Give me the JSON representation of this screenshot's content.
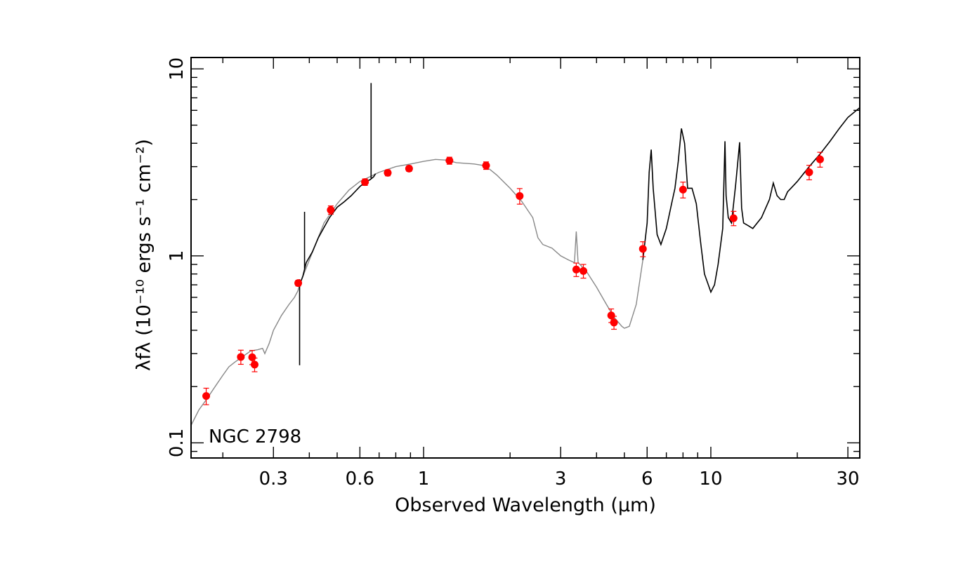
{
  "chart_data": {
    "type": "line",
    "xlabel": "Observed Wavelength (μm)",
    "ylabel": "λfλ (10⁻¹⁰ ergs s⁻¹ cm⁻²)",
    "annotation": "NGC 2798",
    "x_scale": "log",
    "y_scale": "log",
    "xlim": [
      0.155,
      33
    ],
    "ylim": [
      0.083,
      11.5
    ],
    "x_ticks": [
      {
        "value": 0.3,
        "label": "0.3"
      },
      {
        "value": 0.6,
        "label": "0.6"
      },
      {
        "value": 1,
        "label": "1"
      },
      {
        "value": 3,
        "label": "3"
      },
      {
        "value": 6,
        "label": "6"
      },
      {
        "value": 10,
        "label": "10"
      },
      {
        "value": 30,
        "label": "30"
      }
    ],
    "y_ticks": [
      {
        "value": 0.1,
        "label": "0.1"
      },
      {
        "value": 1,
        "label": "1"
      },
      {
        "value": 10,
        "label": "10"
      }
    ],
    "grid": false,
    "colors": {
      "points": "#ff0000",
      "observed_spectrum": "#000000",
      "model_spectrum": "#888888"
    },
    "photometry": [
      {
        "x": 0.175,
        "y": 0.178,
        "err": 0.018
      },
      {
        "x": 0.231,
        "y": 0.288,
        "err": 0.025
      },
      {
        "x": 0.253,
        "y": 0.287,
        "err": 0.025
      },
      {
        "x": 0.258,
        "y": 0.262,
        "err": 0.022
      },
      {
        "x": 0.366,
        "y": 0.715,
        "err": 0.025
      },
      {
        "x": 0.475,
        "y": 1.76,
        "err": 0.09
      },
      {
        "x": 0.625,
        "y": 2.48,
        "err": 0.1
      },
      {
        "x": 0.75,
        "y": 2.78,
        "err": 0.1
      },
      {
        "x": 0.89,
        "y": 2.93,
        "err": 0.1
      },
      {
        "x": 1.23,
        "y": 3.23,
        "err": 0.14
      },
      {
        "x": 1.65,
        "y": 3.04,
        "err": 0.14
      },
      {
        "x": 2.16,
        "y": 2.09,
        "err": 0.2
      },
      {
        "x": 3.4,
        "y": 0.845,
        "err": 0.07
      },
      {
        "x": 3.6,
        "y": 0.83,
        "err": 0.07
      },
      {
        "x": 4.5,
        "y": 0.48,
        "err": 0.04
      },
      {
        "x": 4.6,
        "y": 0.44,
        "err": 0.035
      },
      {
        "x": 5.8,
        "y": 1.09,
        "err": 0.1
      },
      {
        "x": 8.0,
        "y": 2.26,
        "err": 0.22
      },
      {
        "x": 12.0,
        "y": 1.59,
        "err": 0.14
      },
      {
        "x": 22.0,
        "y": 2.8,
        "err": 0.25
      },
      {
        "x": 24.0,
        "y": 3.28,
        "err": 0.3
      }
    ],
    "model_spectrum": {
      "name": "",
      "x": [
        0.155,
        0.165,
        0.175,
        0.19,
        0.2,
        0.21,
        0.22,
        0.235,
        0.25,
        0.265,
        0.275,
        0.28,
        0.29,
        0.3,
        0.32,
        0.34,
        0.355,
        0.365,
        0.37,
        0.4,
        0.45,
        0.5,
        0.55,
        0.6,
        0.65,
        0.7,
        0.75,
        0.8,
        0.9,
        1.0,
        1.1,
        1.2,
        1.3,
        1.5,
        1.6,
        1.7,
        1.8,
        2.0,
        2.2,
        2.4,
        2.5,
        2.6,
        2.8,
        3.0,
        3.2,
        3.35,
        3.4,
        3.45,
        3.55,
        3.7,
        4.0,
        4.3,
        4.6,
        4.9,
        5.0,
        5.2,
        5.5,
        5.8
      ],
      "y": [
        0.124,
        0.15,
        0.17,
        0.205,
        0.23,
        0.255,
        0.27,
        0.29,
        0.31,
        0.315,
        0.32,
        0.3,
        0.34,
        0.4,
        0.48,
        0.55,
        0.6,
        0.65,
        0.7,
        0.95,
        1.5,
        1.9,
        2.25,
        2.5,
        2.65,
        2.8,
        2.9,
        3.0,
        3.1,
        3.2,
        3.28,
        3.25,
        3.15,
        3.1,
        3.05,
        2.9,
        2.7,
        2.3,
        1.95,
        1.6,
        1.25,
        1.15,
        1.1,
        1.0,
        0.95,
        0.92,
        1.35,
        0.92,
        0.88,
        0.82,
        0.68,
        0.56,
        0.47,
        0.42,
        0.41,
        0.42,
        0.55,
        0.95
      ]
    },
    "observed_spectrum": {
      "name": "",
      "x": [
        0.37,
        0.38,
        0.39,
        0.41,
        0.43,
        0.45,
        0.47,
        0.5,
        0.53,
        0.56,
        0.6,
        0.63,
        0.65,
        0.66,
        0.67,
        0.68
      ],
      "y": [
        0.7,
        0.78,
        0.92,
        1.05,
        1.25,
        1.42,
        1.6,
        1.82,
        1.95,
        2.1,
        2.35,
        2.5,
        2.55,
        2.6,
        2.65,
        2.75
      ]
    },
    "observed_spectrum_spikes": [
      {
        "x": 0.37,
        "y_low": 0.26,
        "y_high": 0.75
      },
      {
        "x": 0.385,
        "y_low": 0.85,
        "y_high": 1.72
      },
      {
        "x": 0.6563,
        "y_low": 2.6,
        "y_high": 8.4
      }
    ],
    "irs_spectrum": {
      "name": "",
      "x": [
        5.8,
        6.0,
        6.1,
        6.2,
        6.3,
        6.5,
        6.7,
        7.0,
        7.3,
        7.5,
        7.7,
        7.9,
        8.1,
        8.3,
        8.6,
        8.9,
        9.2,
        9.5,
        9.8,
        10.0,
        10.3,
        10.6,
        11.0,
        11.2,
        11.3,
        11.5,
        11.8,
        12.2,
        12.6,
        12.8,
        13.0,
        13.5,
        14.0,
        15.0,
        16.0,
        16.5,
        17.0,
        17.5,
        18.0,
        18.5,
        19.0,
        20.0,
        22.0,
        24.0,
        26.0,
        28.0,
        30.0,
        33.0
      ],
      "y": [
        0.95,
        1.5,
        2.8,
        3.7,
        2.3,
        1.3,
        1.15,
        1.4,
        1.9,
        2.3,
        3.2,
        4.8,
        4.0,
        2.3,
        2.3,
        1.9,
        1.2,
        0.8,
        0.7,
        0.64,
        0.7,
        0.9,
        1.4,
        4.1,
        2.1,
        1.6,
        1.5,
        2.4,
        4.05,
        1.8,
        1.5,
        1.45,
        1.4,
        1.6,
        2.0,
        2.45,
        2.1,
        2.0,
        2.0,
        2.2,
        2.3,
        2.5,
        3.0,
        3.5,
        4.1,
        4.8,
        5.5,
        6.2
      ]
    }
  }
}
